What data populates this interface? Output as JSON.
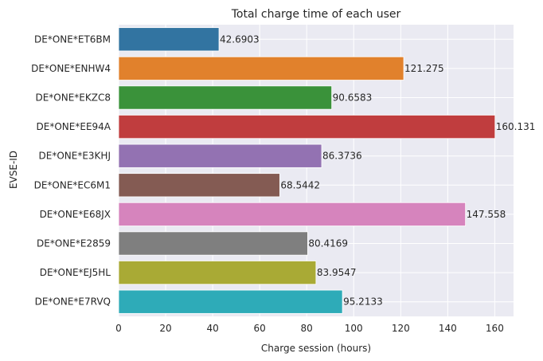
{
  "chart_data": {
    "type": "bar",
    "orientation": "horizontal",
    "title": "Total charge time of each user",
    "xlabel": "Charge session (hours)",
    "ylabel": "EVSE-ID",
    "xlim": [
      0,
      168
    ],
    "xticks": [
      0,
      20,
      40,
      60,
      80,
      100,
      120,
      140,
      160
    ],
    "grid": true,
    "background": "#eaeaf2",
    "categories": [
      "DE*ONE*ET6BM",
      "DE*ONE*ENHW4",
      "DE*ONE*EKZC8",
      "DE*ONE*EE94A",
      "DE*ONE*E3KHJ",
      "DE*ONE*EC6M1",
      "DE*ONE*E68JX",
      "DE*ONE*E2859",
      "DE*ONE*EJ5HL",
      "DE*ONE*E7RVQ"
    ],
    "values": [
      42.6903,
      121.275,
      90.6583,
      160.131,
      86.3736,
      68.5442,
      147.558,
      80.4169,
      83.9547,
      95.2133
    ],
    "value_labels": [
      "42.6903",
      "121.275",
      "90.6583",
      "160.131",
      "86.3736",
      "68.5442",
      "147.558",
      "80.4169",
      "83.9547",
      "95.2133"
    ],
    "colors": [
      "#3274a1",
      "#e1812c",
      "#3a923a",
      "#c03d3e",
      "#9372b2",
      "#845b53",
      "#d684bd",
      "#7f7f7f",
      "#a9aa35",
      "#2eabb8"
    ]
  }
}
